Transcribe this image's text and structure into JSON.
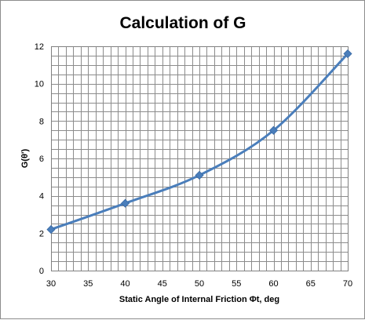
{
  "chart_data": {
    "type": "line",
    "title": "Calculation of G",
    "xlabel": "Static Angle of Internal Friction Φt, deg",
    "ylabel": "G(θ')",
    "xlim": [
      30,
      70
    ],
    "ylim": [
      0,
      12
    ],
    "x_ticks": [
      "30",
      "35",
      "40",
      "45",
      "50",
      "55",
      "60",
      "65",
      "70"
    ],
    "y_ticks": [
      "0",
      "2",
      "4",
      "6",
      "8",
      "10",
      "12"
    ],
    "x_minor_step": 1,
    "y_minor_step": 0.5,
    "grid": true,
    "series": [
      {
        "x": [
          30,
          40,
          50,
          60,
          70
        ],
        "y": [
          2.2,
          3.6,
          5.1,
          7.5,
          11.6
        ],
        "color": "#4a7ebb",
        "marker": "diamond"
      }
    ]
  }
}
